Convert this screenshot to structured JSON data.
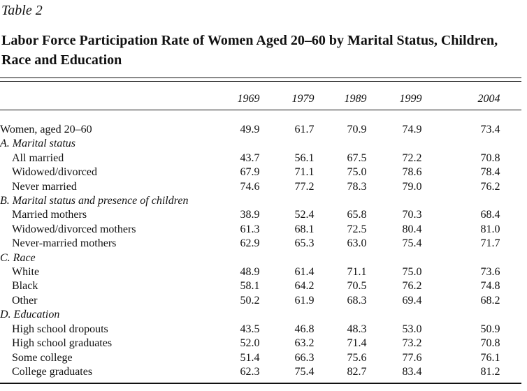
{
  "table_label": "Table 2",
  "title": "Labor Force Participation Rate of Women Aged 20–60 by Marital Status, Children, Race and Education",
  "columns": [
    "1969",
    "1979",
    "1989",
    "1999",
    "2004"
  ],
  "rows": [
    {
      "label": "Women, aged 20–60",
      "type": "main",
      "values": [
        "49.9",
        "61.7",
        "70.9",
        "74.9",
        "73.4"
      ]
    },
    {
      "label": "A. Marital status",
      "type": "section"
    },
    {
      "label": "All married",
      "type": "sub",
      "values": [
        "43.7",
        "56.1",
        "67.5",
        "72.2",
        "70.8"
      ]
    },
    {
      "label": "Widowed/divorced",
      "type": "sub",
      "values": [
        "67.9",
        "71.1",
        "75.0",
        "78.6",
        "78.4"
      ]
    },
    {
      "label": "Never married",
      "type": "sub",
      "values": [
        "74.6",
        "77.2",
        "78.3",
        "79.0",
        "76.2"
      ]
    },
    {
      "label": "B. Marital status and presence of children",
      "type": "section"
    },
    {
      "label": "Married mothers",
      "type": "sub",
      "values": [
        "38.9",
        "52.4",
        "65.8",
        "70.3",
        "68.4"
      ]
    },
    {
      "label": "Widowed/divorced mothers",
      "type": "sub",
      "values": [
        "61.3",
        "68.1",
        "72.5",
        "80.4",
        "81.0"
      ]
    },
    {
      "label": "Never-married mothers",
      "type": "sub",
      "values": [
        "62.9",
        "65.3",
        "63.0",
        "75.4",
        "71.7"
      ]
    },
    {
      "label": "C. Race",
      "type": "section"
    },
    {
      "label": "White",
      "type": "sub",
      "values": [
        "48.9",
        "61.4",
        "71.1",
        "75.0",
        "73.6"
      ]
    },
    {
      "label": "Black",
      "type": "sub",
      "values": [
        "58.1",
        "64.2",
        "70.5",
        "76.2",
        "74.8"
      ]
    },
    {
      "label": "Other",
      "type": "sub",
      "values": [
        "50.2",
        "61.9",
        "68.3",
        "69.4",
        "68.2"
      ]
    },
    {
      "label": "D. Education",
      "type": "section"
    },
    {
      "label": "High school dropouts",
      "type": "sub",
      "values": [
        "43.5",
        "46.8",
        "48.3",
        "53.0",
        "50.9"
      ]
    },
    {
      "label": "High school graduates",
      "type": "sub",
      "values": [
        "52.0",
        "63.2",
        "71.4",
        "73.2",
        "70.8"
      ]
    },
    {
      "label": "Some college",
      "type": "sub",
      "values": [
        "51.4",
        "66.3",
        "75.6",
        "77.6",
        "76.1"
      ]
    },
    {
      "label": "College graduates",
      "type": "sub",
      "values": [
        "62.3",
        "75.4",
        "82.7",
        "83.4",
        "81.2"
      ]
    }
  ]
}
